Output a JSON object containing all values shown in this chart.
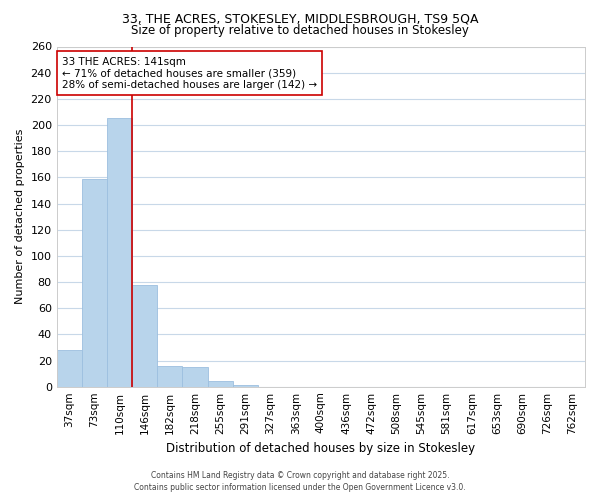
{
  "title_line1": "33, THE ACRES, STOKESLEY, MIDDLESBROUGH, TS9 5QA",
  "title_line2": "Size of property relative to detached houses in Stokesley",
  "xlabel": "Distribution of detached houses by size in Stokesley",
  "ylabel": "Number of detached properties",
  "bar_labels": [
    "37sqm",
    "73sqm",
    "110sqm",
    "146sqm",
    "182sqm",
    "218sqm",
    "255sqm",
    "291sqm",
    "327sqm",
    "363sqm",
    "400sqm",
    "436sqm",
    "472sqm",
    "508sqm",
    "545sqm",
    "581sqm",
    "617sqm",
    "653sqm",
    "690sqm",
    "726sqm",
    "762sqm"
  ],
  "bar_values": [
    28,
    159,
    205,
    78,
    16,
    15,
    4,
    1,
    0,
    0,
    0,
    0,
    0,
    0,
    0,
    0,
    0,
    0,
    0,
    0,
    0
  ],
  "bar_color": "#b8d4eb",
  "bar_edge_color": "#9cbfdf",
  "vline_color": "#cc0000",
  "annotation_title": "33 THE ACRES: 141sqm",
  "annotation_line2": "← 71% of detached houses are smaller (359)",
  "annotation_line3": "28% of semi-detached houses are larger (142) →",
  "annotation_box_color": "#ffffff",
  "annotation_box_edge": "#cc0000",
  "ylim": [
    0,
    260
  ],
  "yticks": [
    0,
    20,
    40,
    60,
    80,
    100,
    120,
    140,
    160,
    180,
    200,
    220,
    240,
    260
  ],
  "footer_line1": "Contains HM Land Registry data © Crown copyright and database right 2025.",
  "footer_line2": "Contains public sector information licensed under the Open Government Licence v3.0.",
  "background_color": "#ffffff",
  "grid_color": "#c8d8e8"
}
